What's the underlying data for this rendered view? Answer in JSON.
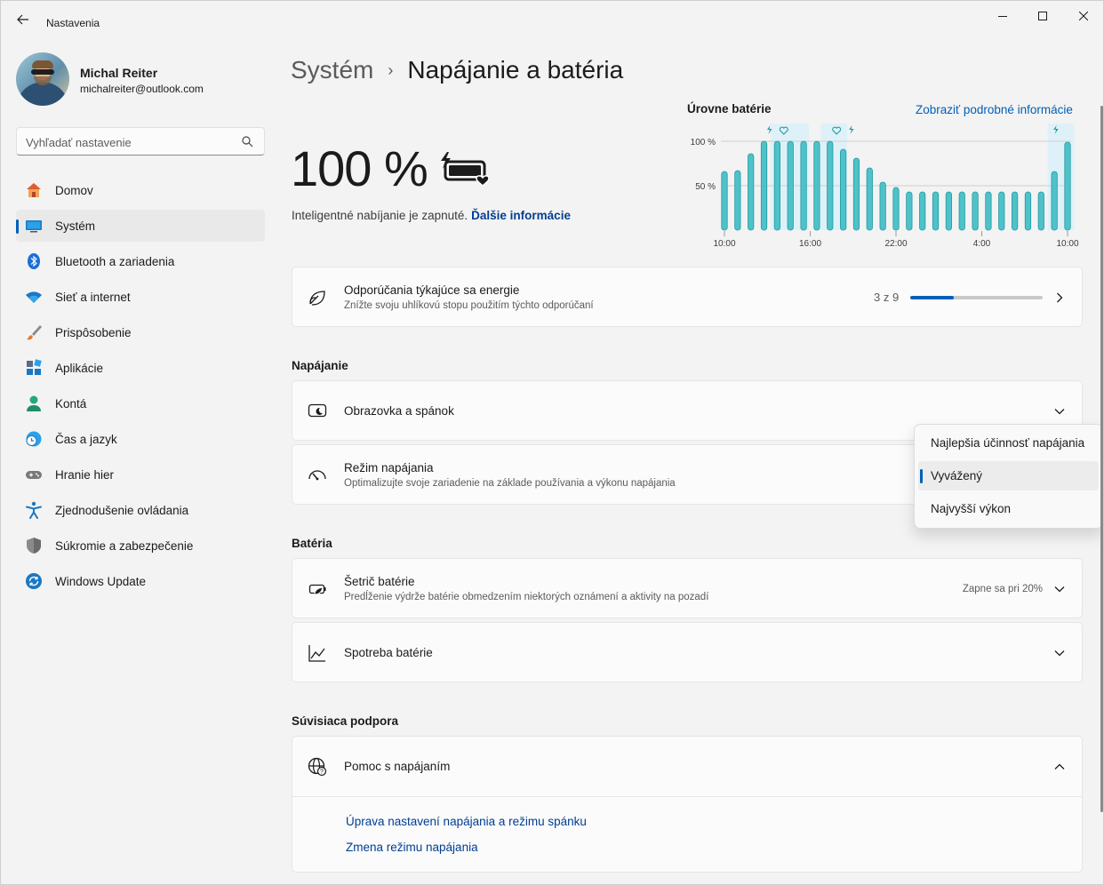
{
  "window": {
    "title": "Nastavenia"
  },
  "user": {
    "name": "Michal Reiter",
    "email": "michalreiter@outlook.com"
  },
  "search": {
    "placeholder": "Vyhľadať nastavenie"
  },
  "nav": [
    {
      "label": "Domov",
      "icon": "home-icon"
    },
    {
      "label": "Systém",
      "icon": "system-icon",
      "active": true
    },
    {
      "label": "Bluetooth a zariadenia",
      "icon": "bluetooth-icon"
    },
    {
      "label": "Sieť a internet",
      "icon": "wifi-icon"
    },
    {
      "label": "Prispôsobenie",
      "icon": "brush-icon"
    },
    {
      "label": "Aplikácie",
      "icon": "apps-icon"
    },
    {
      "label": "Kontá",
      "icon": "person-icon"
    },
    {
      "label": "Čas a jazyk",
      "icon": "clock-globe-icon"
    },
    {
      "label": "Hranie hier",
      "icon": "gamepad-icon"
    },
    {
      "label": "Zjednodušenie ovládania",
      "icon": "accessibility-icon"
    },
    {
      "label": "Súkromie a zabezpečenie",
      "icon": "shield-icon"
    },
    {
      "label": "Windows Update",
      "icon": "update-icon"
    }
  ],
  "breadcrumb": {
    "parent": "Systém",
    "separator": "›",
    "current": "Napájanie a batéria"
  },
  "battery": {
    "percent": "100 %",
    "smart_charging_text": "Inteligentné nabíjanie je zapnuté.",
    "more_info_link": "Ďalšie informácie"
  },
  "chart_data": {
    "type": "bar",
    "title": "Úrovne batérie",
    "link": "Zobraziť podrobné informácie",
    "y_ticks": [
      "100 %",
      "50 %"
    ],
    "ylim": [
      0,
      100
    ],
    "x_ticks": [
      "10:00",
      "16:00",
      "22:00",
      "4:00",
      "10:00"
    ],
    "values": [
      66,
      67,
      86,
      100,
      100,
      100,
      100,
      100,
      100,
      91,
      81,
      70,
      54,
      48,
      43,
      43,
      43,
      43,
      43,
      43,
      43,
      43,
      43,
      43,
      43,
      66,
      99
    ],
    "charging_markers": [
      "lightning-icon",
      "heart-icon",
      "heart-icon",
      "lightning-icon",
      "lightning-icon"
    ],
    "accent_color": "#4fc2c9"
  },
  "energy_card": {
    "title": "Odporúčania týkajúce sa energie",
    "desc": "Znížte svoju uhlíkovú stopu použitím týchto odporúčaní",
    "count": "3 z 9",
    "progress": 0.33
  },
  "power_section": {
    "heading": "Napájanie",
    "screen_sleep": {
      "title": "Obrazovka a spánok"
    },
    "power_mode": {
      "title": "Režim napájania",
      "desc": "Optimalizujte svoje zariadenie na základe používania a výkonu napájania"
    }
  },
  "power_mode_dropdown": {
    "options": [
      "Najlepšia účinnosť napájania",
      "Vyvážený",
      "Najvyšší výkon"
    ],
    "selected": "Vyvážený"
  },
  "battery_section": {
    "heading": "Batéria",
    "saver": {
      "title": "Šetrič batérie",
      "desc": "Predĺženie výdrže batérie obmedzením niektorých oznámení a aktivity na pozadí",
      "value": "Zapne sa pri 20%"
    },
    "usage": {
      "title": "Spotreba batérie"
    }
  },
  "support_section": {
    "heading": "Súvisiaca podpora",
    "help": {
      "title": "Pomoc s napájaním",
      "links": [
        "Úprava nastavení napájania a režimu spánku",
        "Zmena režimu napájania"
      ]
    }
  }
}
